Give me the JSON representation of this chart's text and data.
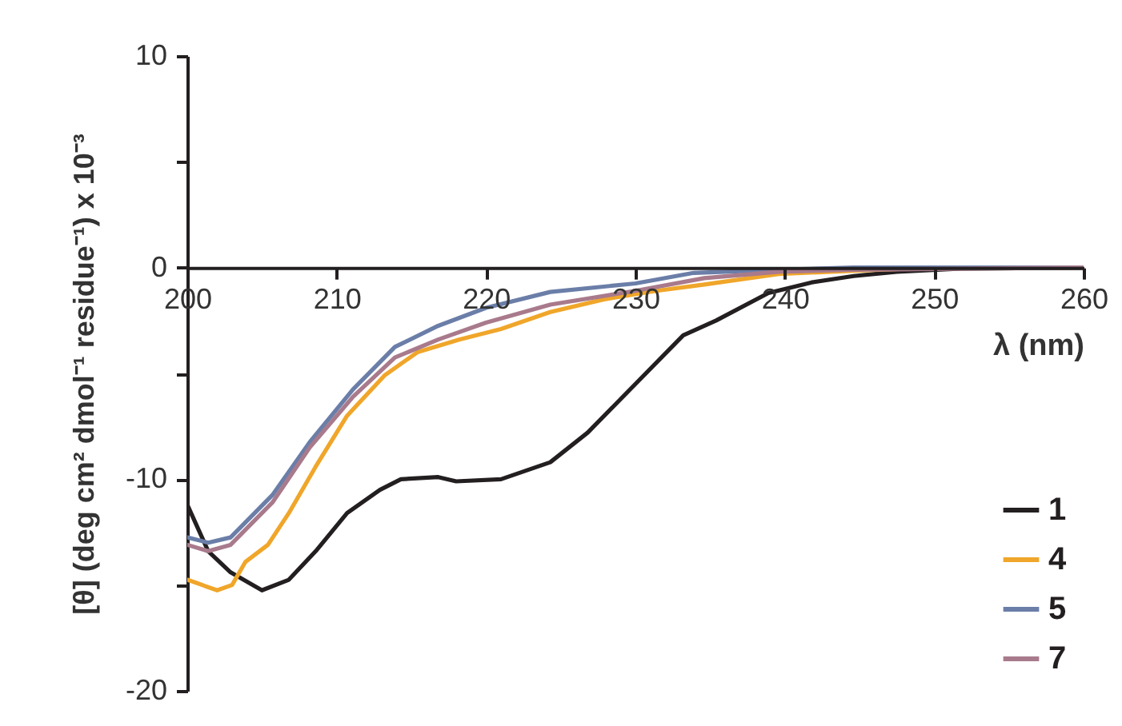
{
  "chart_data": {
    "type": "line",
    "xlabel": "λ (nm)",
    "ylabel": "[θ] (deg cm² dmol⁻¹ residue⁻¹) x 10⁻³",
    "xlim": [
      200,
      260
    ],
    "xticks": [
      200,
      210,
      220,
      230,
      240,
      250,
      260
    ],
    "ylim": [
      -20,
      10
    ],
    "yticks": [
      10,
      {
        "value": 5,
        "label": null
      },
      0,
      {
        "value": -5,
        "label": null
      },
      -10,
      {
        "value": -15,
        "label": null
      },
      -20
    ],
    "grid": false,
    "legend": "bottom right",
    "marker": "none",
    "line_style": "solid",
    "series": [
      {
        "name": "1",
        "color": "#231f20",
        "x": [
          200,
          201.4,
          202.9,
          205,
          206.8,
          208.6,
          210.7,
          212.9,
          214.3,
          216.8,
          218,
          221,
          224.3,
          226.8,
          230,
          233.2,
          235.4,
          238.9,
          241.8,
          244.6,
          247.5,
          251.8,
          260
        ],
        "values": [
          -11.2,
          -13.4,
          -14.4,
          -15.25,
          -14.75,
          -13.4,
          -11.6,
          -10.5,
          -10,
          -9.9,
          -10.1,
          -10,
          -9.2,
          -7.8,
          -5.5,
          -3.2,
          -2.5,
          -1.2,
          -0.7,
          -0.4,
          -0.2,
          -0.05,
          0
        ]
      },
      {
        "name": "4",
        "color": "#f0a62a",
        "x": [
          200,
          202,
          203,
          203.9,
          205.4,
          206.8,
          208.6,
          210.7,
          213.2,
          215.4,
          218.2,
          221,
          224.3,
          227.9,
          231.4,
          234.6,
          239.6,
          244.6,
          250,
          260
        ],
        "values": [
          -14.75,
          -15.25,
          -15,
          -13.9,
          -13.1,
          -11.6,
          -9.4,
          -7,
          -5.1,
          -4,
          -3.4,
          -2.9,
          -2.1,
          -1.5,
          -1.1,
          -0.8,
          -0.3,
          -0.15,
          0,
          0
        ]
      },
      {
        "name": "5",
        "color": "#6a7ea8",
        "x": [
          200,
          201.4,
          202.9,
          205.7,
          208.2,
          211.1,
          213.9,
          216.8,
          220,
          224.3,
          230,
          233.9,
          239.6,
          244.6,
          260
        ],
        "values": [
          -12.75,
          -13,
          -12.75,
          -10.75,
          -8.25,
          -5.75,
          -3.75,
          -2.75,
          -1.9,
          -1.15,
          -0.75,
          -0.25,
          -0.1,
          0,
          0
        ]
      },
      {
        "name": "7",
        "color": "#a87a8c",
        "x": [
          200,
          201.4,
          202.9,
          205.7,
          208.2,
          211.1,
          213.9,
          216.8,
          220,
          224.3,
          230,
          234.6,
          239.6,
          244.6,
          260
        ],
        "values": [
          -13.1,
          -13.4,
          -13.1,
          -11.1,
          -8.5,
          -6.1,
          -4.25,
          -3.4,
          -2.6,
          -1.75,
          -1.1,
          -0.5,
          -0.2,
          -0.1,
          0
        ]
      }
    ]
  }
}
